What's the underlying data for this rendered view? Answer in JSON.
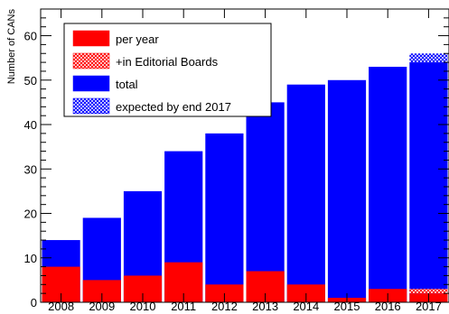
{
  "chart_data": {
    "type": "bar",
    "ylabel": "Number of CANs",
    "xlabel": "",
    "ylim": [
      0,
      66
    ],
    "yticks": [
      "0",
      "10",
      "20",
      "30",
      "40",
      "50",
      "60"
    ],
    "categories": [
      "2008",
      "2009",
      "2010",
      "2011",
      "2012",
      "2013",
      "2014",
      "2015",
      "2016",
      "2017"
    ],
    "grid": false,
    "legend_position": "top-left",
    "series": [
      {
        "name": "per year",
        "values": [
          8,
          5,
          6,
          9,
          4,
          7,
          4,
          1,
          3,
          2
        ],
        "color": "#ff0000",
        "fill": "solid"
      },
      {
        "name": "+in Editorial Boards",
        "values": [
          0,
          0,
          0,
          0,
          0,
          0,
          0,
          0,
          0,
          1
        ],
        "color": "#ff0000",
        "fill": "hatch"
      },
      {
        "name": "total",
        "values": [
          14,
          19,
          25,
          34,
          38,
          45,
          49,
          50,
          53,
          54
        ],
        "color": "#0000ff",
        "fill": "solid"
      },
      {
        "name": "expected by end 2017",
        "values": [
          null,
          null,
          null,
          null,
          null,
          null,
          null,
          null,
          null,
          56
        ],
        "color": "#0000ff",
        "fill": "hatch"
      }
    ]
  }
}
